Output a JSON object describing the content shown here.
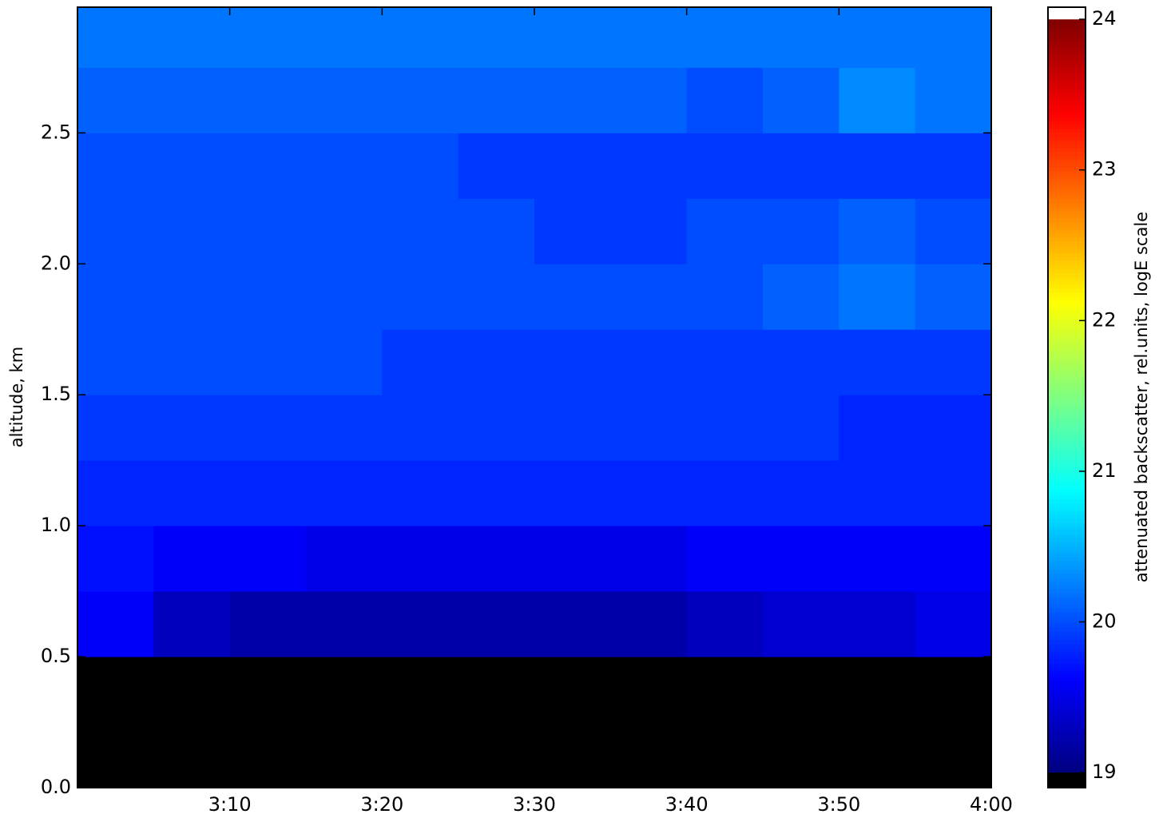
{
  "chart_data": {
    "type": "heatmap",
    "y_label": "altitude, km",
    "colorbar_label": "attenuated backscatter, rel.units, logE scale",
    "colormap": "jet",
    "under_color": "#000000",
    "over_color": "#ffffff",
    "clim": [
      19,
      24
    ],
    "colorbar_lim": [
      18.9,
      24.08
    ],
    "colorbar_ticks": [
      19,
      20,
      21,
      22,
      23,
      24
    ],
    "xlim": [
      180,
      240
    ],
    "xticks": [
      {
        "value": 190,
        "label": "3:10"
      },
      {
        "value": 200,
        "label": "3:20"
      },
      {
        "value": 210,
        "label": "3:30"
      },
      {
        "value": 220,
        "label": "3:40"
      },
      {
        "value": 230,
        "label": "3:50"
      },
      {
        "value": 240,
        "label": "4:00"
      }
    ],
    "ylim": [
      0,
      2.98
    ],
    "yticks": [
      {
        "value": 0,
        "label": "0.0"
      },
      0.5,
      {
        "value": 1,
        "label": "1.0"
      },
      1.5,
      {
        "value": 2,
        "label": "2.0"
      },
      2.5
    ],
    "x_edges": [
      180,
      185,
      190,
      195,
      200,
      205,
      210,
      215,
      220,
      225,
      230,
      235,
      240
    ],
    "y_edges": [
      0,
      0.25,
      0.5,
      0.75,
      1,
      1.25,
      1.5,
      1.75,
      2,
      2.25,
      2.5,
      2.75,
      3
    ],
    "values": [
      [
        18.9,
        18.9,
        18.9,
        18.9,
        18.9,
        18.9,
        18.9,
        18.9,
        18.9,
        18.9,
        18.9,
        18.9
      ],
      [
        18.9,
        18.9,
        18.9,
        18.9,
        18.9,
        18.9,
        18.9,
        18.9,
        18.9,
        18.9,
        18.9,
        18.9
      ],
      [
        19.6,
        19.3,
        19.2,
        19.2,
        19.2,
        19.2,
        19.2,
        19.2,
        19.3,
        19.4,
        19.4,
        19.5
      ],
      [
        19.7,
        19.6,
        19.6,
        19.5,
        19.5,
        19.5,
        19.5,
        19.5,
        19.6,
        19.6,
        19.6,
        19.6
      ],
      [
        19.8,
        19.8,
        19.8,
        19.8,
        19.8,
        19.8,
        19.8,
        19.8,
        19.8,
        19.8,
        19.8,
        19.8
      ],
      [
        19.9,
        19.9,
        19.9,
        19.9,
        19.9,
        19.9,
        19.9,
        19.9,
        19.9,
        19.9,
        19.8,
        19.8
      ],
      [
        20.0,
        20.0,
        20.0,
        20.0,
        19.9,
        19.9,
        19.9,
        19.9,
        19.9,
        19.9,
        19.9,
        19.9
      ],
      [
        20.0,
        20.0,
        20.0,
        20.0,
        20.0,
        20.0,
        20.0,
        20.0,
        20.0,
        20.1,
        20.2,
        20.1
      ],
      [
        20.0,
        20.0,
        20.0,
        20.0,
        20.0,
        20.0,
        19.9,
        19.9,
        20.0,
        20.0,
        20.1,
        20.0
      ],
      [
        20.0,
        20.0,
        20.0,
        20.0,
        20.0,
        19.9,
        19.9,
        19.9,
        19.9,
        19.9,
        19.9,
        19.9
      ],
      [
        20.1,
        20.1,
        20.1,
        20.1,
        20.1,
        20.1,
        20.1,
        20.1,
        20.0,
        20.1,
        20.3,
        20.2
      ],
      [
        20.2,
        20.2,
        20.2,
        20.2,
        20.2,
        20.2,
        20.2,
        20.2,
        20.2,
        20.2,
        20.2,
        20.2
      ]
    ]
  }
}
